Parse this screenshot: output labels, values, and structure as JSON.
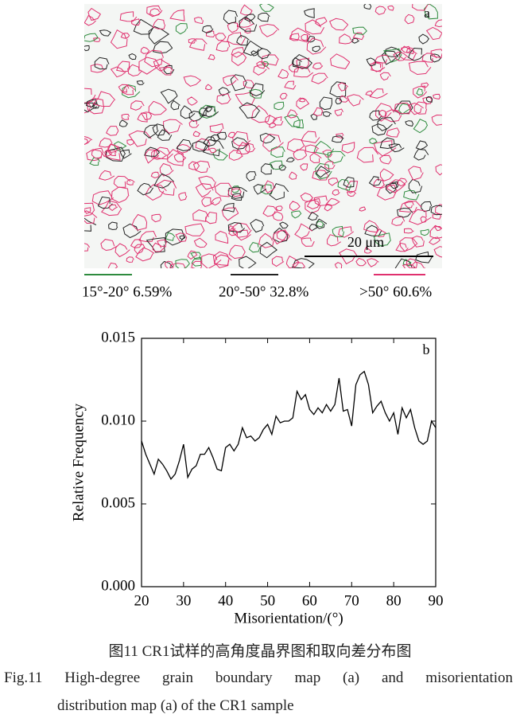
{
  "figure_a": {
    "label": "a",
    "scale_bar": "20 μm",
    "legend": [
      {
        "name": "15°-20° 6.59%",
        "color": "#2e8b3e"
      },
      {
        "name": "20°-50° 32.8%",
        "color": "#222222"
      },
      {
        "name": ">50° 60.6%",
        "color": "#e0306e"
      }
    ]
  },
  "chart_data": {
    "type": "line",
    "annotation": "b",
    "xlabel": "Misorientation/(°)",
    "ylabel": "Relative Frequency",
    "x": [
      20,
      21,
      22,
      23,
      24,
      25,
      26,
      27,
      28,
      29,
      30,
      31,
      32,
      33,
      34,
      35,
      36,
      37,
      38,
      39,
      40,
      41,
      42,
      43,
      44,
      45,
      46,
      47,
      48,
      49,
      50,
      51,
      52,
      53,
      54,
      55,
      56,
      57,
      58,
      59,
      60,
      61,
      62,
      63,
      64,
      65,
      66,
      67,
      68,
      69,
      70,
      71,
      72,
      73,
      74,
      75,
      76,
      77,
      78,
      79,
      80,
      81,
      82,
      83,
      84,
      85,
      86,
      87,
      88,
      89,
      90
    ],
    "values": [
      0.0088,
      0.008,
      0.0074,
      0.0068,
      0.0077,
      0.0074,
      0.007,
      0.0065,
      0.0068,
      0.0076,
      0.0086,
      0.0066,
      0.0071,
      0.0073,
      0.008,
      0.008,
      0.0084,
      0.0078,
      0.0071,
      0.007,
      0.0084,
      0.0086,
      0.0082,
      0.0086,
      0.0096,
      0.009,
      0.0091,
      0.0088,
      0.009,
      0.0095,
      0.0098,
      0.0092,
      0.0103,
      0.0099,
      0.01,
      0.01,
      0.0102,
      0.0118,
      0.0113,
      0.0116,
      0.0107,
      0.0104,
      0.0108,
      0.0105,
      0.011,
      0.0106,
      0.011,
      0.0126,
      0.0106,
      0.0107,
      0.0097,
      0.0122,
      0.0128,
      0.013,
      0.0122,
      0.0105,
      0.0109,
      0.0112,
      0.0105,
      0.01,
      0.0105,
      0.0092,
      0.0108,
      0.0102,
      0.0107,
      0.0096,
      0.0088,
      0.0086,
      0.0088,
      0.01,
      0.0096
    ],
    "color": "#000000",
    "xlim": [
      20,
      90
    ],
    "xticks": [
      20,
      30,
      40,
      50,
      60,
      70,
      80,
      90
    ],
    "ylim": [
      0,
      0.015
    ],
    "yticks": [
      {
        "value": 0,
        "label": "0.000"
      },
      {
        "value": 0.005,
        "label": "0.005"
      },
      {
        "value": 0.01,
        "label": "0.010"
      },
      {
        "value": 0.015,
        "label": "0.015"
      }
    ]
  },
  "caption": {
    "zh": "图11  CR1试样的高角度晶界图和取向差分布图",
    "en_lines": [
      "Fig.11 High-degree grain boundary map (a) and misorientation",
      "distribution map (a) of the CR1 sample"
    ]
  }
}
